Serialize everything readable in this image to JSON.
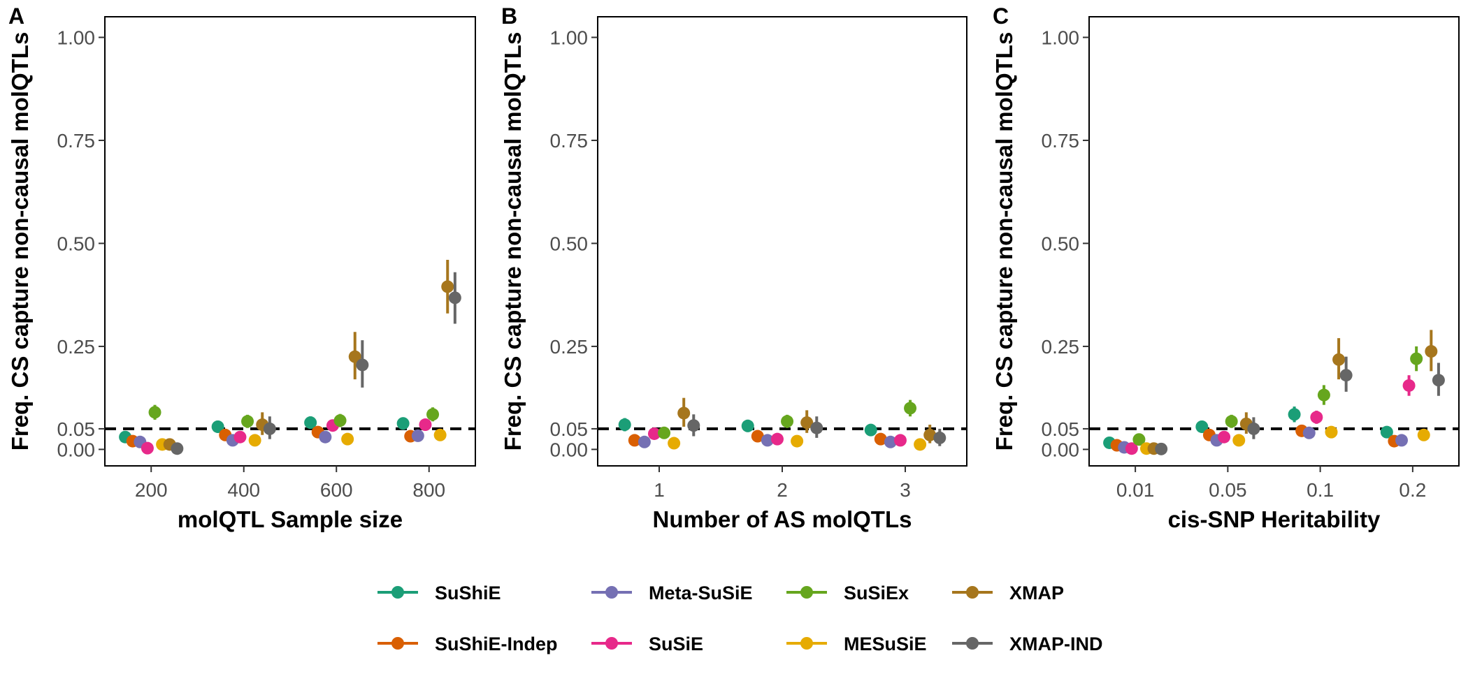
{
  "methods": [
    {
      "name": "SuShiE",
      "color": "#1B9E77"
    },
    {
      "name": "SuShiE-Indep",
      "color": "#D95F02"
    },
    {
      "name": "Meta-SuSiE",
      "color": "#7570B3"
    },
    {
      "name": "SuSiE",
      "color": "#E7298A"
    },
    {
      "name": "SuSiEx",
      "color": "#66A61E"
    },
    {
      "name": "MESuSiE",
      "color": "#E6AB02"
    },
    {
      "name": "XMAP",
      "color": "#A6761D"
    },
    {
      "name": "XMAP-IND",
      "color": "#666666"
    }
  ],
  "chart_data": [
    {
      "type": "scatter",
      "panel": "A",
      "xlabel": "molQTL Sample size",
      "ylabel": "Freq. CS capture non-causal molQTLs",
      "categories": [
        "200",
        "400",
        "600",
        "800"
      ],
      "ylim": [
        -0.04,
        1.05
      ],
      "yticks": [
        "0.00",
        "0.05",
        "0.25",
        "0.50",
        "0.75",
        "1.00"
      ],
      "reference_line": 0.05,
      "grid": false,
      "series": [
        {
          "name": "SuShiE",
          "values": [
            0.03,
            0.055,
            0.065,
            0.063
          ],
          "lower": [
            0.018,
            0.04,
            0.05,
            0.048
          ],
          "upper": [
            0.042,
            0.07,
            0.08,
            0.078
          ]
        },
        {
          "name": "SuShiE-Indep",
          "values": [
            0.02,
            0.035,
            0.042,
            0.032
          ],
          "lower": [
            0.012,
            0.025,
            0.03,
            0.022
          ],
          "upper": [
            0.03,
            0.045,
            0.054,
            0.042
          ]
        },
        {
          "name": "Meta-SuSiE",
          "values": [
            0.018,
            0.022,
            0.03,
            0.033
          ],
          "lower": [
            0.01,
            0.014,
            0.02,
            0.022
          ],
          "upper": [
            0.026,
            0.03,
            0.04,
            0.044
          ]
        },
        {
          "name": "SuSiE",
          "values": [
            0.003,
            0.03,
            0.058,
            0.06
          ],
          "lower": [
            0.0,
            0.02,
            0.045,
            0.046
          ],
          "upper": [
            0.008,
            0.04,
            0.071,
            0.074
          ]
        },
        {
          "name": "SuSiEx",
          "values": [
            0.09,
            0.068,
            0.07,
            0.085
          ],
          "lower": [
            0.072,
            0.052,
            0.054,
            0.068
          ],
          "upper": [
            0.108,
            0.084,
            0.086,
            0.102
          ]
        },
        {
          "name": "MESuSiE",
          "values": [
            0.012,
            0.022,
            0.025,
            0.035
          ],
          "lower": [
            0.005,
            0.014,
            0.017,
            0.025
          ],
          "upper": [
            0.02,
            0.03,
            0.033,
            0.045
          ]
        },
        {
          "name": "XMAP",
          "values": [
            0.012,
            0.06,
            0.225,
            0.395
          ],
          "lower": [
            0.004,
            0.035,
            0.17,
            0.33
          ],
          "upper": [
            0.022,
            0.09,
            0.285,
            0.46
          ]
        },
        {
          "name": "XMAP-IND",
          "values": [
            0.002,
            0.05,
            0.205,
            0.368
          ],
          "lower": [
            0.0,
            0.025,
            0.15,
            0.305
          ],
          "upper": [
            0.006,
            0.08,
            0.265,
            0.43
          ]
        }
      ]
    },
    {
      "type": "scatter",
      "panel": "B",
      "xlabel": "Number of AS molQTLs",
      "ylabel": "Freq. CS capture non-causal molQTLs",
      "categories": [
        "1",
        "2",
        "3"
      ],
      "ylim": [
        -0.04,
        1.05
      ],
      "yticks": [
        "0.00",
        "0.05",
        "0.25",
        "0.50",
        "0.75",
        "1.00"
      ],
      "reference_line": 0.05,
      "grid": false,
      "series": [
        {
          "name": "SuShiE",
          "values": [
            0.06,
            0.057,
            0.047
          ],
          "lower": [
            0.044,
            0.042,
            0.034
          ],
          "upper": [
            0.076,
            0.072,
            0.06
          ]
        },
        {
          "name": "SuShiE-Indep",
          "values": [
            0.022,
            0.032,
            0.025
          ],
          "lower": [
            0.013,
            0.022,
            0.016
          ],
          "upper": [
            0.031,
            0.042,
            0.034
          ]
        },
        {
          "name": "Meta-SuSiE",
          "values": [
            0.018,
            0.022,
            0.018
          ],
          "lower": [
            0.01,
            0.014,
            0.01
          ],
          "upper": [
            0.026,
            0.03,
            0.026
          ]
        },
        {
          "name": "SuSiE",
          "values": [
            0.038,
            0.025,
            0.022
          ],
          "lower": [
            0.028,
            0.016,
            0.014
          ],
          "upper": [
            0.048,
            0.034,
            0.03
          ]
        },
        {
          "name": "SuSiEx",
          "values": [
            0.04,
            0.068,
            0.1
          ],
          "lower": [
            0.026,
            0.052,
            0.08
          ],
          "upper": [
            0.054,
            0.084,
            0.12
          ]
        },
        {
          "name": "MESuSiE",
          "values": [
            0.015,
            0.02,
            0.012
          ],
          "lower": [
            0.007,
            0.012,
            0.004
          ],
          "upper": [
            0.023,
            0.028,
            0.02
          ]
        },
        {
          "name": "XMAP",
          "values": [
            0.088,
            0.065,
            0.035
          ],
          "lower": [
            0.055,
            0.04,
            0.015
          ],
          "upper": [
            0.125,
            0.095,
            0.06
          ]
        },
        {
          "name": "XMAP-IND",
          "values": [
            0.058,
            0.052,
            0.028
          ],
          "lower": [
            0.032,
            0.028,
            0.008
          ],
          "upper": [
            0.085,
            0.08,
            0.05
          ]
        }
      ]
    },
    {
      "type": "scatter",
      "panel": "C",
      "xlabel": "cis-SNP Heritability",
      "ylabel": "Freq. CS capture non-causal molQTLs",
      "categories": [
        "0.01",
        "0.05",
        "0.1",
        "0.2"
      ],
      "ylim": [
        -0.04,
        1.05
      ],
      "yticks": [
        "0.00",
        "0.05",
        "0.25",
        "0.50",
        "0.75",
        "1.00"
      ],
      "reference_line": 0.05,
      "grid": false,
      "series": [
        {
          "name": "SuShiE",
          "values": [
            0.016,
            0.055,
            0.085,
            0.042
          ],
          "lower": [
            0.01,
            0.04,
            0.066,
            0.03
          ],
          "upper": [
            0.022,
            0.07,
            0.104,
            0.054
          ]
        },
        {
          "name": "SuShiE-Indep",
          "values": [
            0.01,
            0.035,
            0.045,
            0.02
          ],
          "lower": [
            0.005,
            0.025,
            0.033,
            0.012
          ],
          "upper": [
            0.015,
            0.045,
            0.057,
            0.028
          ]
        },
        {
          "name": "Meta-SuSiE",
          "values": [
            0.005,
            0.022,
            0.04,
            0.022
          ],
          "lower": [
            0.001,
            0.014,
            0.028,
            0.014
          ],
          "upper": [
            0.009,
            0.03,
            0.052,
            0.03
          ]
        },
        {
          "name": "SuSiE",
          "values": [
            0.002,
            0.03,
            0.078,
            0.155
          ],
          "lower": [
            0.0,
            0.02,
            0.062,
            0.13
          ],
          "upper": [
            0.005,
            0.04,
            0.094,
            0.18
          ]
        },
        {
          "name": "SuSiEx",
          "values": [
            0.024,
            0.068,
            0.132,
            0.22
          ],
          "lower": [
            0.014,
            0.052,
            0.108,
            0.19
          ],
          "upper": [
            0.034,
            0.084,
            0.156,
            0.25
          ]
        },
        {
          "name": "MESuSiE",
          "values": [
            0.002,
            0.022,
            0.042,
            0.035
          ],
          "lower": [
            0.0,
            0.014,
            0.03,
            0.025
          ],
          "upper": [
            0.005,
            0.03,
            0.054,
            0.045
          ]
        },
        {
          "name": "XMAP",
          "values": [
            0.002,
            0.062,
            0.218,
            0.238
          ],
          "lower": [
            0.0,
            0.038,
            0.17,
            0.19
          ],
          "upper": [
            0.005,
            0.09,
            0.27,
            0.29
          ]
        },
        {
          "name": "XMAP-IND",
          "values": [
            0.001,
            0.05,
            0.18,
            0.168
          ],
          "lower": [
            0.0,
            0.025,
            0.14,
            0.13
          ],
          "upper": [
            0.003,
            0.078,
            0.225,
            0.21
          ]
        }
      ]
    }
  ]
}
